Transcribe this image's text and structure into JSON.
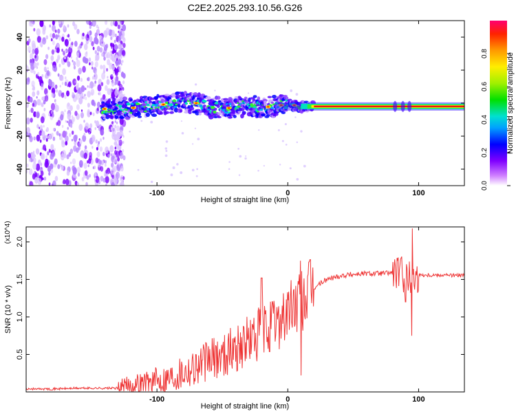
{
  "title": "C2E2.2025.293.10.56.G26",
  "chart_data": [
    {
      "type": "heatmap",
      "xlabel": "Height of straight line (km)",
      "ylabel": "Frequency (Hz)",
      "xlim": [
        -200,
        135
      ],
      "ylim": [
        -50,
        50
      ],
      "x_ticks": [
        -100,
        0,
        100
      ],
      "x_tick_labels": [
        "-100",
        "0",
        "100"
      ],
      "y_ticks": [
        -40,
        -20,
        0,
        20,
        40
      ],
      "y_tick_labels": [
        "-40",
        "-20",
        "0",
        "20",
        "40"
      ],
      "colorbar": {
        "label": "Normalized spectral amplitude",
        "range": [
          0,
          1
        ],
        "ticks": [
          0,
          0.2,
          0.4,
          0.6,
          0.8
        ],
        "tick_labels": [
          "0.0",
          "0.2",
          "0.4",
          "0.6",
          "0.8"
        ]
      },
      "signal_track": [
        {
          "x": -140,
          "f": -3.5
        },
        {
          "x": -120,
          "f": -3
        },
        {
          "x": -100,
          "f": -1.5
        },
        {
          "x": -85,
          "f": 0.5
        },
        {
          "x": -70,
          "f": 0
        },
        {
          "x": -60,
          "f": -2.5
        },
        {
          "x": -45,
          "f": -3
        },
        {
          "x": -30,
          "f": -1.5
        },
        {
          "x": -20,
          "f": -2.5
        },
        {
          "x": -10,
          "f": -2
        },
        {
          "x": 0,
          "f": -0.5
        },
        {
          "x": 10,
          "f": -2
        },
        {
          "x": 20,
          "f": -2
        },
        {
          "x": 135,
          "f": -2
        }
      ]
    },
    {
      "type": "line",
      "xlabel": "Height of straight line (km)",
      "ylabel": "SNR (10 * v/v)",
      "y_scale_note": "(x10^4)",
      "xlim": [
        -200,
        135
      ],
      "ylim": [
        0,
        2.2
      ],
      "x_ticks": [
        -100,
        0,
        100
      ],
      "x_tick_labels": [
        "-100",
        "0",
        "100"
      ],
      "y_ticks": [
        0.5,
        1.0,
        1.5,
        2.0
      ],
      "y_tick_labels": [
        "0.5",
        "1.0",
        "1.5",
        "2.0"
      ],
      "series": [
        {
          "name": "SNR",
          "color": "#ee3333",
          "x": [
            -200,
            -180,
            -160,
            -140,
            -130,
            -120,
            -110,
            -100,
            -90,
            -80,
            -70,
            -60,
            -50,
            -40,
            -30,
            -25,
            -20,
            -15,
            -10,
            -5,
            0,
            5,
            10,
            15,
            20,
            25,
            30,
            40,
            50,
            60,
            70,
            80,
            85,
            90,
            95,
            100,
            110,
            120,
            135
          ],
          "values": [
            0.04,
            0.04,
            0.05,
            0.05,
            0.05,
            0.08,
            0.12,
            0.15,
            0.2,
            0.28,
            0.35,
            0.42,
            0.5,
            0.58,
            0.68,
            0.72,
            0.78,
            0.85,
            0.9,
            1.0,
            1.05,
            1.15,
            1.2,
            1.3,
            1.38,
            1.45,
            1.5,
            1.55,
            1.57,
            1.58,
            1.58,
            1.59,
            1.58,
            1.55,
            1.5,
            1.56,
            1.56,
            1.56,
            1.55
          ],
          "spikes": [
            {
              "x": 10,
              "high": 1.75,
              "low": 0.22
            },
            {
              "x": 95,
              "high": 2.18,
              "low": 0.75
            },
            {
              "x": 90,
              "high": 1.98,
              "low": 1.2
            },
            {
              "x": -20,
              "high": 1.52,
              "low": 0.3
            }
          ]
        }
      ]
    }
  ]
}
